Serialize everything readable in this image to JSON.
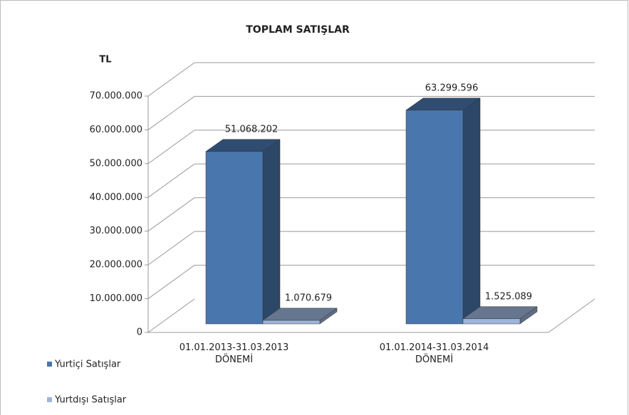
{
  "chart_data": {
    "type": "bar3d",
    "title": "TOPLAM SATIŞLAR",
    "y_label": "TL",
    "categories": [
      "01.01.2013-31.03.2013 DÖNEMİ",
      "01.01.2014-31.03.2014 DÖNEMİ"
    ],
    "series": [
      {
        "name": "Yurtiçi Satışlar",
        "color": "#4a76ae",
        "values": [
          51068202,
          63299596
        ],
        "value_labels": [
          "51.068.202",
          "63.299.596"
        ]
      },
      {
        "name": "Yurtdışı Satışlar",
        "color": "#9db5dc",
        "values": [
          1070679,
          1525089
        ],
        "value_labels": [
          "1.070.679",
          "1.525.089"
        ]
      }
    ],
    "ylim": [
      0,
      70000000
    ],
    "yticks": [
      0,
      {
        "value": 10000000,
        "label": "10.000.000"
      },
      {
        "value": 20000000,
        "label": "20.000.000"
      },
      {
        "value": 30000000,
        "label": "30.000.000"
      },
      {
        "value": 40000000,
        "label": "40.000.000"
      },
      {
        "value": 50000000,
        "label": "50.000.000"
      },
      {
        "value": 60000000,
        "label": "60.000.000"
      },
      {
        "value": 70000000,
        "label": "70.000.000"
      }
    ],
    "grid": true,
    "legend": "bottom-left"
  }
}
